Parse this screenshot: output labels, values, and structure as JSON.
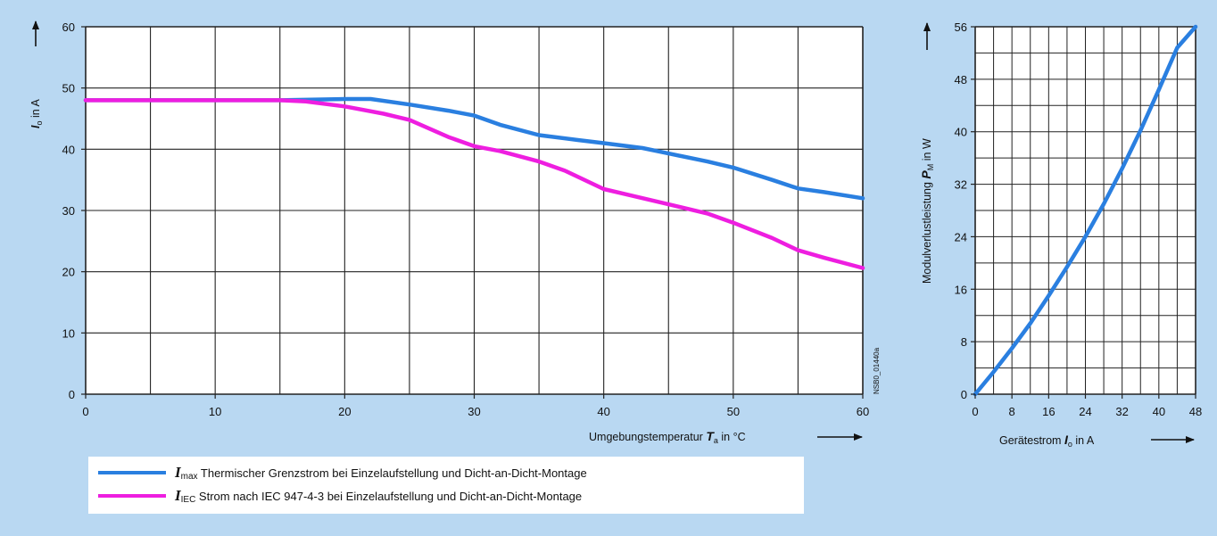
{
  "colors": {
    "background": "#b9d8f2",
    "plot": "#ffffff",
    "grid": "#222222",
    "imax": "#2a7fe0",
    "iiec": "#ee1ee0"
  },
  "chart_data": [
    {
      "type": "line",
      "title": "",
      "xlabel": {
        "text": "Umgebungstemperatur ",
        "var": "T",
        "sub": "a",
        "unit": " in °C"
      },
      "ylabel": {
        "var": "I",
        "sub": "o",
        "unit": " in A"
      },
      "xlim": [
        0,
        60
      ],
      "ylim": [
        0,
        60
      ],
      "xticks": [
        "0",
        "10",
        "20",
        "30",
        "40",
        "50",
        "60"
      ],
      "yticks": [
        "0",
        "10",
        "20",
        "30",
        "40",
        "50",
        "60"
      ],
      "grid": true,
      "series": [
        {
          "name": "Imax",
          "color": "#2a7fe0",
          "points": [
            [
              0,
              48
            ],
            [
              10,
              48
            ],
            [
              15,
              48
            ],
            [
              20,
              48.2
            ],
            [
              22,
              48.2
            ],
            [
              25,
              47.3
            ],
            [
              28,
              46.3
            ],
            [
              30,
              45.5
            ],
            [
              32,
              44
            ],
            [
              35,
              42.3
            ],
            [
              38,
              41.5
            ],
            [
              40,
              41
            ],
            [
              43,
              40.2
            ],
            [
              45,
              39.3
            ],
            [
              48,
              38
            ],
            [
              50,
              37
            ],
            [
              53,
              35
            ],
            [
              55,
              33.6
            ],
            [
              57,
              33
            ],
            [
              60,
              32
            ]
          ]
        },
        {
          "name": "IIEC",
          "color": "#ee1ee0",
          "points": [
            [
              0,
              48
            ],
            [
              10,
              48
            ],
            [
              15,
              48
            ],
            [
              17,
              47.8
            ],
            [
              20,
              47
            ],
            [
              23,
              45.8
            ],
            [
              25,
              44.8
            ],
            [
              28,
              42
            ],
            [
              30,
              40.5
            ],
            [
              32,
              39.7
            ],
            [
              35,
              38
            ],
            [
              37,
              36.5
            ],
            [
              40,
              33.5
            ],
            [
              42,
              32.5
            ],
            [
              45,
              31
            ],
            [
              48,
              29.5
            ],
            [
              50,
              28
            ],
            [
              53,
              25.5
            ],
            [
              55,
              23.5
            ],
            [
              57,
              22.3
            ],
            [
              60,
              20.6
            ]
          ]
        }
      ],
      "annotation": "NSB0_01440a"
    },
    {
      "type": "line",
      "title": "",
      "xlabel": {
        "text": "Gerätestrom ",
        "var": "I",
        "sub": "o",
        "unit": " in A"
      },
      "ylabel": {
        "text": "Modulverlustleistung ",
        "var": "P",
        "sub": "M",
        "unit": " in W"
      },
      "xlim": [
        0,
        48
      ],
      "ylim": [
        0,
        56
      ],
      "xticks": [
        "0",
        "8",
        "16",
        "24",
        "32",
        "40",
        "48"
      ],
      "yticks": [
        "0",
        "8",
        "16",
        "24",
        "32",
        "40",
        "48",
        "56"
      ],
      "grid": true,
      "series": [
        {
          "name": "PM",
          "color": "#2a7fe0",
          "points": [
            [
              0,
              0
            ],
            [
              4,
              3.4
            ],
            [
              8,
              7
            ],
            [
              12,
              10.8
            ],
            [
              16,
              15
            ],
            [
              20,
              19.4
            ],
            [
              24,
              24
            ],
            [
              28,
              29
            ],
            [
              32,
              34.4
            ],
            [
              36,
              40.2
            ],
            [
              40,
              46.4
            ],
            [
              44,
              52.8
            ],
            [
              48,
              56
            ]
          ]
        }
      ]
    }
  ],
  "legend": {
    "items": [
      {
        "var": "I",
        "sub": "max",
        "text": " Thermischer Grenzstrom bei Einzelaufstellung und Dicht-an-Dicht-Montage",
        "color": "#2a7fe0"
      },
      {
        "var": "I",
        "sub": "IEC",
        "text": " Strom nach IEC 947-4-3 bei Einzelaufstellung und Dicht-an-Dicht-Montage",
        "color": "#ee1ee0"
      }
    ]
  }
}
